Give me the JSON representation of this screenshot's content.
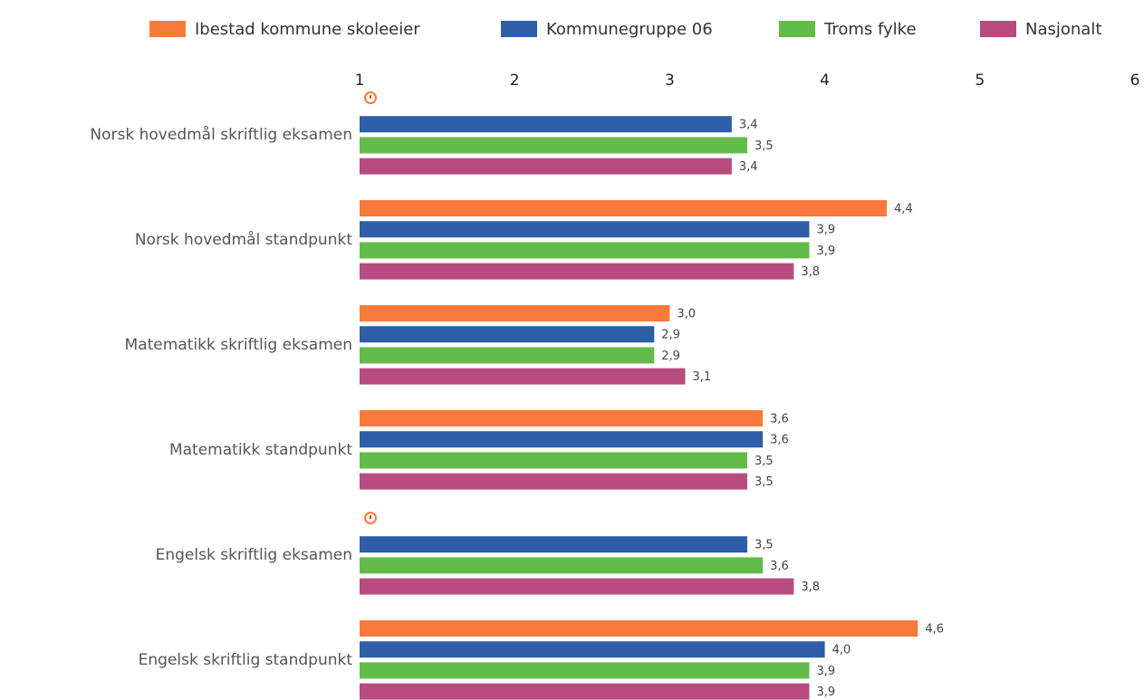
{
  "chart_data": {
    "type": "bar",
    "orientation": "horizontal",
    "categories": [
      "Norsk hovedmål skriftlig eksamen",
      "Norsk hovedmål standpunkt",
      "Matematikk skriftlig eksamen",
      "Matematikk standpunkt",
      "Engelsk skriftlig eksamen",
      "Engelsk skriftlig standpunkt"
    ],
    "series": [
      {
        "name": "Ibestad kommune skoleeier",
        "color": "#f97a3c",
        "values": [
          null,
          4.4,
          3.0,
          3.6,
          null,
          4.6
        ],
        "value_labels": [
          null,
          "4,4",
          "3,0",
          "3,6",
          null,
          "4,6"
        ]
      },
      {
        "name": "Kommunegruppe 06",
        "color": "#2e5ea8",
        "values": [
          3.4,
          3.9,
          2.9,
          3.6,
          3.5,
          4.0
        ],
        "value_labels": [
          "3,4",
          "3,9",
          "2,9",
          "3,6",
          "3,5",
          "4,0"
        ]
      },
      {
        "name": "Troms fylke",
        "color": "#63bb4a",
        "values": [
          3.5,
          3.9,
          2.9,
          3.5,
          3.6,
          3.9
        ],
        "value_labels": [
          "3,5",
          "3,9",
          "2,9",
          "3,5",
          "3,6",
          "3,9"
        ]
      },
      {
        "name": "Nasjonalt",
        "color": "#b84c7e",
        "values": [
          3.4,
          3.8,
          3.1,
          3.5,
          3.8,
          3.9
        ],
        "value_labels": [
          "3,4",
          "3,8",
          "3,1",
          "3,5",
          "3,8",
          "3,9"
        ]
      }
    ],
    "xlim": [
      1,
      6
    ],
    "xticks": [
      1,
      2,
      3,
      4,
      5,
      6
    ],
    "legend": "top",
    "grid": false
  }
}
